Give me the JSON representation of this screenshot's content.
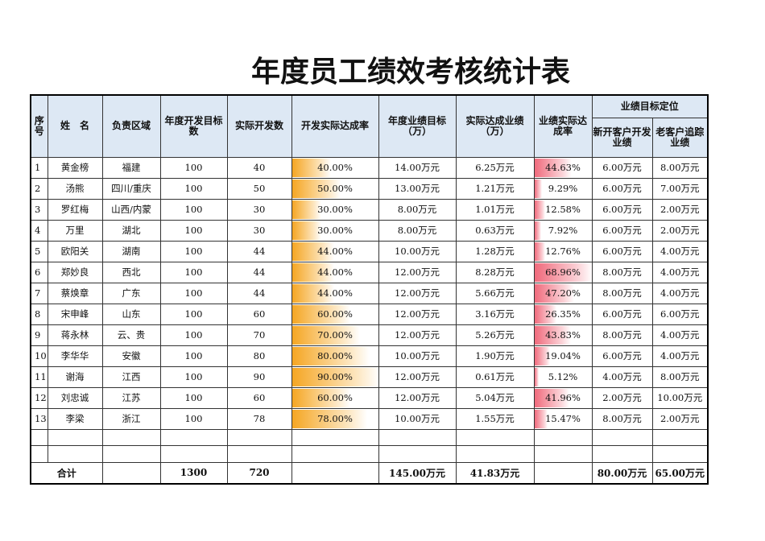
{
  "header": {
    "title": "年度员工绩效考核统计表"
  },
  "table": {
    "columns": [
      "序号",
      "姓　名",
      "负责区域",
      "年度开发目标数",
      "实际开发数",
      "开发实际达成率",
      "年度业绩目标（万）",
      "实际达成业绩（万）",
      "业绩实际达成率"
    ],
    "group": {
      "title": "业绩目标定位",
      "columns": [
        "新开客户开发业绩",
        "老客户追踪业绩"
      ]
    },
    "rows": [
      [
        "1",
        "黄金榜",
        "福建",
        "100",
        "40",
        "40.00%",
        "14.00万元",
        "6.25万元",
        "44.63%",
        "6.00万元",
        "8.00万元"
      ],
      [
        "2",
        "汤熊",
        "四川/重庆",
        "100",
        "50",
        "50.00%",
        "13.00万元",
        "1.21万元",
        "9.29%",
        "6.00万元",
        "7.00万元"
      ],
      [
        "3",
        "罗红梅",
        "山西/内蒙",
        "100",
        "30",
        "30.00%",
        "8.00万元",
        "1.01万元",
        "12.58%",
        "6.00万元",
        "2.00万元"
      ],
      [
        "4",
        "万里",
        "湖北",
        "100",
        "30",
        "30.00%",
        "8.00万元",
        "0.63万元",
        "7.92%",
        "6.00万元",
        "2.00万元"
      ],
      [
        "5",
        "欧阳关",
        "湖南",
        "100",
        "44",
        "44.00%",
        "10.00万元",
        "1.28万元",
        "12.76%",
        "6.00万元",
        "4.00万元"
      ],
      [
        "6",
        "郑妙良",
        "西北",
        "100",
        "44",
        "44.00%",
        "12.00万元",
        "8.28万元",
        "68.96%",
        "8.00万元",
        "4.00万元"
      ],
      [
        "7",
        "蔡焕章",
        "广东",
        "100",
        "44",
        "44.00%",
        "12.00万元",
        "5.66万元",
        "47.20%",
        "8.00万元",
        "4.00万元"
      ],
      [
        "8",
        "宋申峰",
        "山东",
        "100",
        "60",
        "60.00%",
        "12.00万元",
        "3.16万元",
        "26.35%",
        "6.00万元",
        "6.00万元"
      ],
      [
        "9",
        "蒋永林",
        "云、贵",
        "100",
        "70",
        "70.00%",
        "12.00万元",
        "5.26万元",
        "43.83%",
        "8.00万元",
        "4.00万元"
      ],
      [
        "10",
        "李华华",
        "安徽",
        "100",
        "80",
        "80.00%",
        "10.00万元",
        "1.90万元",
        "19.04%",
        "6.00万元",
        "4.00万元"
      ],
      [
        "11",
        "谢海",
        "江西",
        "100",
        "90",
        "90.00%",
        "12.00万元",
        "0.61万元",
        "5.12%",
        "4.00万元",
        "8.00万元"
      ],
      [
        "12",
        "刘忠诚",
        "江苏",
        "100",
        "60",
        "60.00%",
        "12.00万元",
        "5.04万元",
        "41.96%",
        "2.00万元",
        "10.00万元"
      ],
      [
        "13",
        "李梁",
        "浙江",
        "100",
        "78",
        "78.00%",
        "10.00万元",
        "1.55万元",
        "15.47%",
        "8.00万元",
        "2.00万元"
      ]
    ],
    "total": {
      "label": "合计",
      "cells": {
        "3": "1300",
        "4": "720",
        "6": "145.00万元",
        "7": "41.83万元",
        "9": "80.00万元",
        "10": "65.00万元"
      }
    }
  }
}
